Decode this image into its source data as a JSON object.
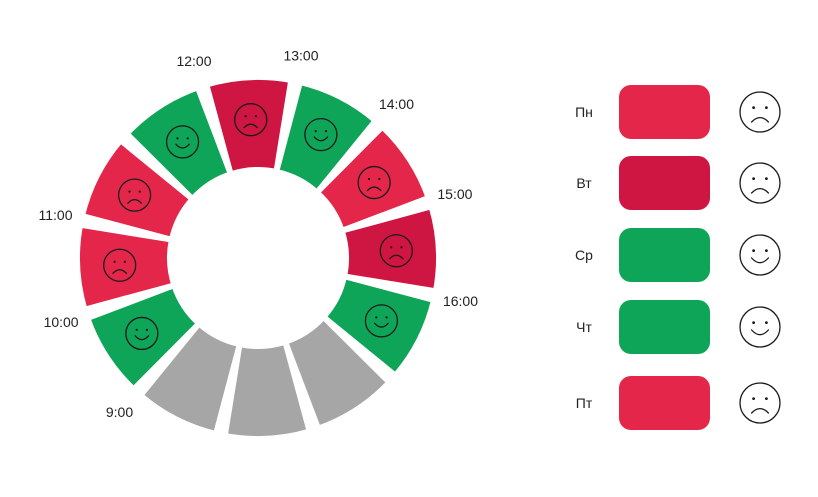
{
  "colors": {
    "green": "#0fa558",
    "red": "#e5264b",
    "crimson": "#cf1541",
    "gray": "#a6a6a6",
    "outline": "#1a1a1a"
  },
  "hours": [
    {
      "label": "12:00",
      "color": "crimson",
      "face": "sad"
    },
    {
      "label": "13:00",
      "color": "green",
      "face": "happy"
    },
    {
      "label": "14:00",
      "color": "red",
      "face": "sad"
    },
    {
      "label": "15:00",
      "color": "crimson",
      "face": "sad"
    },
    {
      "label": "16:00",
      "color": "green",
      "face": "happy"
    },
    {
      "label": "",
      "color": "gray",
      "face": ""
    },
    {
      "label": "",
      "color": "gray",
      "face": ""
    },
    {
      "label": "",
      "color": "gray",
      "face": ""
    },
    {
      "label": "9:00",
      "color": "green",
      "face": "happy"
    },
    {
      "label": "10:00",
      "color": "red",
      "face": "sad"
    },
    {
      "label": "11:00",
      "color": "red",
      "face": "sad"
    },
    {
      "label": "",
      "color": "green",
      "face": "happy"
    }
  ],
  "days": [
    {
      "label": "Пн",
      "color": "red",
      "face": "sad"
    },
    {
      "label": "Вт",
      "color": "crimson",
      "face": "sad"
    },
    {
      "label": "Ср",
      "color": "green",
      "face": "happy"
    },
    {
      "label": "Чт",
      "color": "green",
      "face": "happy"
    },
    {
      "label": "Пт",
      "color": "red",
      "face": "sad"
    }
  ]
}
